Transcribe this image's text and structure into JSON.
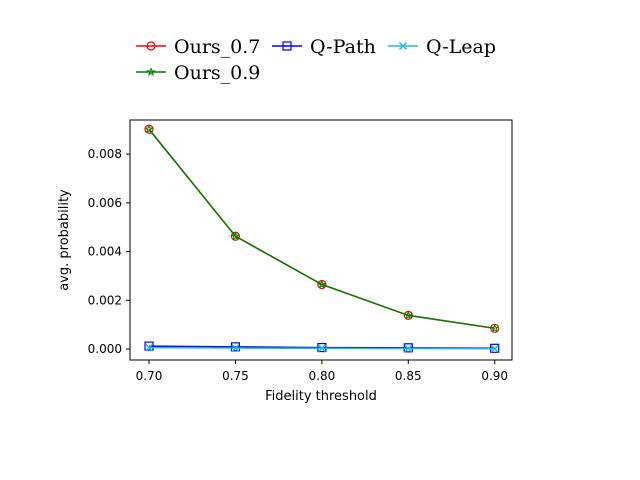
{
  "chart_data": {
    "type": "line",
    "title": "",
    "xlabel": "Fidelity threshold",
    "ylabel": "avg. probability",
    "x": [
      0.7,
      0.75,
      0.8,
      0.85,
      0.9
    ],
    "x_ticks": [
      "0.70",
      "0.75",
      "0.80",
      "0.85",
      "0.90"
    ],
    "y_ticks": [
      "0.000",
      "0.002",
      "0.004",
      "0.006",
      "0.008"
    ],
    "xlim": [
      0.689,
      0.91
    ],
    "ylim": [
      -0.00045,
      0.0094
    ],
    "grid": false,
    "legend_position": "top",
    "series": [
      {
        "name": "Ours_0.7",
        "color": "#ff0000",
        "marker": "circle",
        "values": [
          0.00902,
          0.00463,
          0.00265,
          0.00138,
          0.00085
        ]
      },
      {
        "name": "Q-Path",
        "color": "#0000ff",
        "marker": "square",
        "values": [
          0.00012,
          9e-05,
          6e-05,
          5e-05,
          3e-05
        ]
      },
      {
        "name": "Q-Leap",
        "color": "#17becf",
        "marker": "x",
        "values": [
          6e-05,
          4e-05,
          3e-05,
          2e-05,
          1e-05
        ]
      },
      {
        "name": "Ours_0.9",
        "color": "#008000",
        "marker": "star",
        "values": [
          0.00902,
          0.00463,
          0.00265,
          0.00138,
          0.00085
        ]
      }
    ]
  }
}
